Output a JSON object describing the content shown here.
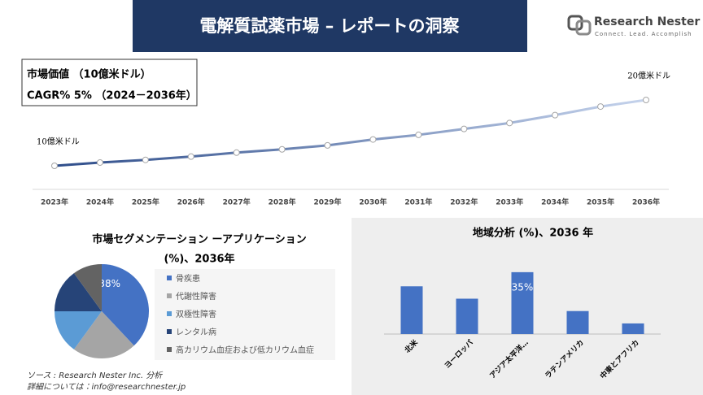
{
  "header": {
    "title": "電解質試薬市場 – レポートの洞察",
    "logo_name": "Research Nester",
    "logo_tagline": "Connect. Lead. Accomplish"
  },
  "chart_data": [
    {
      "type": "line",
      "info_box": [
        "市場価値 （10億米ドル）",
        "CAGR% 5% （2024－2036年）"
      ],
      "annotations": [
        "10億米ドル",
        "20億米ドル"
      ],
      "categories": [
        "2023年",
        "2024年",
        "2025年",
        "2026年",
        "2027年",
        "2028年",
        "2029年",
        "2030年",
        "2031年",
        "2032年",
        "2033年",
        "2034年",
        "2035年",
        "2036年"
      ],
      "values": [
        10,
        10.5,
        10.9,
        11.4,
        12.0,
        12.5,
        13.1,
        14.0,
        14.7,
        15.6,
        16.5,
        17.7,
        19.0,
        20.0
      ],
      "ylim": [
        7,
        25
      ],
      "gradient": [
        "#2e4d8a",
        "#c5d3ec"
      ]
    },
    {
      "type": "pie",
      "title_lines": [
        "市場セグメンテーション ーアプリケーション",
        "(%)、2036年"
      ],
      "categories": [
        "骨疾患",
        "代謝性障害",
        "双極性障害",
        "レンタル病",
        "高カリウム血症および低カリウム血症"
      ],
      "values": [
        38,
        22,
        15,
        15,
        10
      ],
      "value_labels": [
        "38%",
        null,
        null,
        null,
        null
      ],
      "colors": [
        "#4472c4",
        "#a5a5a5",
        "#5b9bd5",
        "#264478",
        "#636363"
      ]
    },
    {
      "type": "bar",
      "title": "地域分析 (%)、2036 年",
      "categories": [
        "北米",
        "ヨーロッパ",
        "アジア太平洋…",
        "ラテンアメリカ",
        "中東とアフリカ"
      ],
      "values": [
        27,
        20,
        35,
        13,
        6
      ],
      "value_labels": [
        null,
        null,
        "35%",
        null,
        null
      ],
      "ylim": [
        0,
        40
      ],
      "color": "#4472c4"
    }
  ],
  "footer": [
    "ソース : Research Nester Inc. 分析",
    "詳細については：info@researchnester.jp"
  ]
}
